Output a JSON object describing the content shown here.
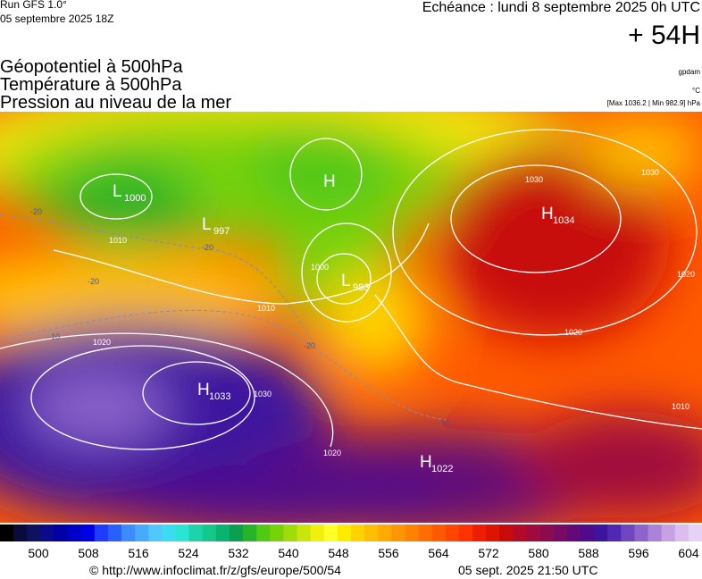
{
  "header": {
    "run": "Run GFS 1.0°",
    "run_date": "05 septembre 2025 18Z",
    "valid": "Echéance : lundi 8 septembre 2025 0h UTC",
    "lead": "+ 54H"
  },
  "legend": {
    "fields": [
      "Géopotentiel à 500hPa",
      "Température à 500hPa",
      "Pression au niveau de la mer"
    ],
    "units": [
      "gpdam",
      "°C"
    ],
    "range": "[Max 1036.2 | Min 982.9] hPa"
  },
  "map": {
    "centers": [
      {
        "kind": "L",
        "value": 1000
      },
      {
        "kind": "L",
        "value": 997
      },
      {
        "kind": "H"
      },
      {
        "kind": "L",
        "value": 983
      },
      {
        "kind": "H",
        "value": 1034
      },
      {
        "kind": "H",
        "value": 1033
      },
      {
        "kind": "H",
        "value": 1022
      }
    ],
    "isobar_labels": [
      "1030",
      "1020",
      "1010",
      "1010",
      "1020",
      "1030",
      "1020",
      "1020",
      "1010",
      "1000",
      "1030"
    ],
    "temperature_labels": [
      "-20",
      "-20",
      "-20",
      "-10",
      "-10",
      "-20"
    ]
  },
  "colorbar": {
    "colors": [
      "#000000",
      "#0a0a3c",
      "#101060",
      "#0a0a8c",
      "#0000a8",
      "#0000c8",
      "#0000e6",
      "#1e3cff",
      "#2860ff",
      "#3c8cff",
      "#46aaff",
      "#50c8ff",
      "#3cdcf0",
      "#28e6d2",
      "#1ed2aa",
      "#14c88c",
      "#0ab46e",
      "#0aa050",
      "#28b428",
      "#50c814",
      "#78d20a",
      "#a0dc0a",
      "#c8e60a",
      "#f0f00a",
      "#ffff28",
      "#ffeb00",
      "#ffd200",
      "#ffbe00",
      "#ffaa00",
      "#ff9600",
      "#ff8200",
      "#ff6e00",
      "#ff5a00",
      "#ff4600",
      "#ff3200",
      "#f01e00",
      "#dc1400",
      "#c80a0a",
      "#b40a28",
      "#a00a3c",
      "#8c0a50",
      "#780a64",
      "#640a78",
      "#500a8c",
      "#3c14a0",
      "#5028b4",
      "#6e46c0",
      "#8c64cc",
      "#aa82d8",
      "#c8a0e4",
      "#dcbeee",
      "#e6d2f5"
    ],
    "ticks": [
      500,
      508,
      516,
      524,
      532,
      540,
      548,
      556,
      564,
      572,
      580,
      588,
      596,
      604
    ]
  },
  "footer": {
    "source": "© http://www.infoclimat.fr/z/gfs/europe/500/54",
    "timestamp": "05 sept. 2025 21:50 UTC"
  }
}
